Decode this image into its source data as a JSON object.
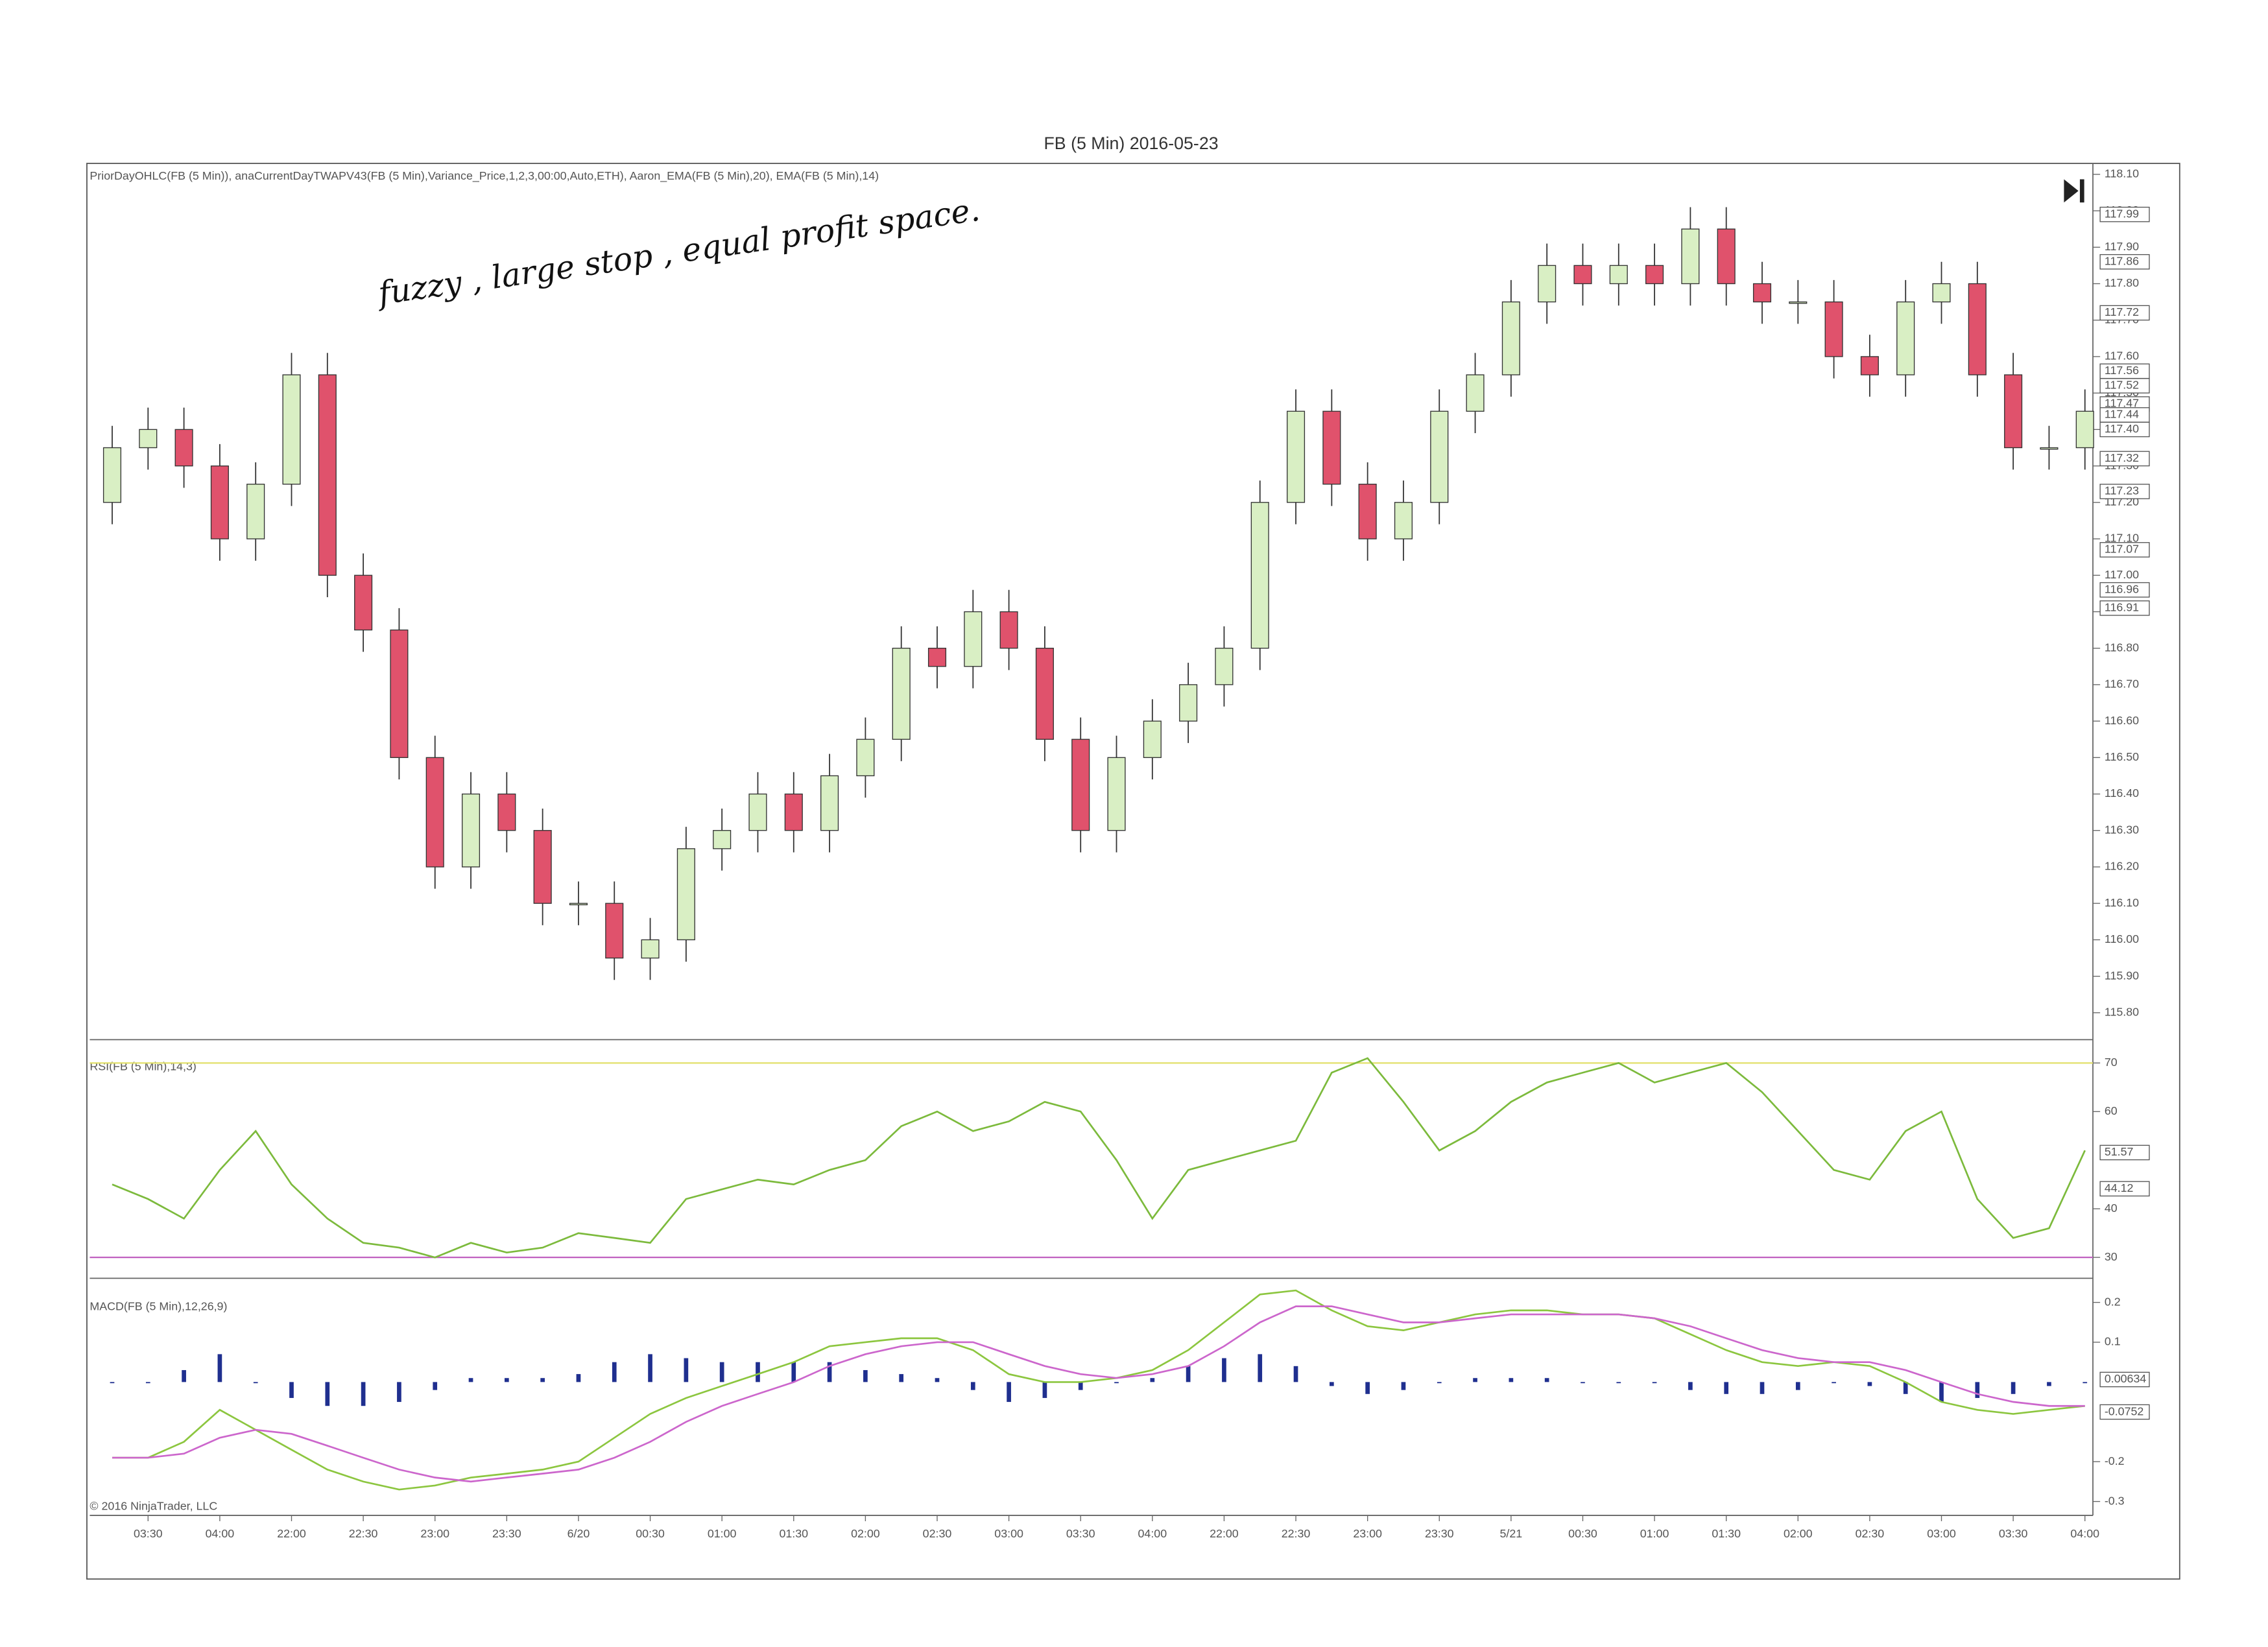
{
  "chart_data": [
    {
      "type": "candlestick",
      "page_title": "FB (5 Min)  2016-05-23",
      "title": "PriorDayOHLC(FB (5 Min)), anaCurrentDayTWAPV43(FB (5 Min),Variance_Price,1,2,3,00:00,Auto,ETH), Aaron_EMA(FB (5 Min),20), EMA(FB (5 Min),14)",
      "annotation": "fuzzy , large stop , equal profit space.",
      "copyright": "© 2016 NinjaTrader, LLC",
      "up_color": "#d9efc4",
      "down_color": "#e0526c",
      "categories": [
        null,
        "03:30",
        null,
        "04:00",
        null,
        "22:00",
        null,
        "22:30",
        null,
        "23:00",
        null,
        "23:30",
        null,
        "6/20",
        null,
        "00:30",
        null,
        "01:00",
        null,
        "01:30",
        null,
        "02:00",
        null,
        "02:30",
        null,
        "03:00",
        null,
        "03:30",
        null,
        "04:00",
        null,
        "22:00",
        null,
        "22:30",
        null,
        "23:00",
        null,
        "23:30",
        null,
        "5/21",
        null,
        "00:30",
        null,
        "01:00",
        null,
        "01:30",
        null,
        "02:00",
        null,
        "02:30",
        null,
        "03:00",
        null,
        "03:30",
        null,
        "04:00"
      ],
      "open": [
        117.2,
        117.35,
        117.4,
        117.3,
        117.1,
        117.25,
        117.55,
        117.0,
        116.85,
        116.5,
        116.2,
        116.4,
        116.3,
        116.1,
        116.1,
        115.95,
        116.0,
        116.25,
        116.3,
        116.4,
        116.3,
        116.45,
        116.55,
        116.8,
        116.75,
        116.9,
        116.8,
        116.55,
        116.3,
        116.5,
        116.6,
        116.7,
        116.8,
        117.2,
        117.45,
        117.25,
        117.1,
        117.2,
        117.45,
        117.55,
        117.75,
        117.85,
        117.8,
        117.85,
        117.8,
        117.95,
        117.8,
        117.75,
        117.75,
        117.6,
        117.55,
        117.75,
        117.8,
        117.55,
        117.35,
        117.35
      ],
      "high": [
        117.41,
        117.46,
        117.46,
        117.36,
        117.31,
        117.61,
        117.61,
        117.06,
        116.91,
        116.56,
        116.46,
        116.46,
        116.36,
        116.16,
        116.16,
        116.06,
        116.31,
        116.36,
        116.46,
        116.46,
        116.51,
        116.61,
        116.86,
        116.86,
        116.96,
        116.96,
        116.86,
        116.61,
        116.56,
        116.66,
        116.76,
        116.86,
        117.26,
        117.51,
        117.51,
        117.31,
        117.26,
        117.51,
        117.61,
        117.81,
        117.91,
        117.91,
        117.91,
        117.91,
        118.01,
        118.01,
        117.86,
        117.81,
        117.81,
        117.66,
        117.81,
        117.86,
        117.86,
        117.61,
        117.41,
        117.51
      ],
      "low": [
        117.14,
        117.29,
        117.24,
        117.04,
        117.04,
        117.19,
        116.94,
        116.79,
        116.44,
        116.14,
        116.14,
        116.24,
        116.04,
        116.04,
        115.89,
        115.89,
        115.94,
        116.19,
        116.24,
        116.24,
        116.24,
        116.39,
        116.49,
        116.69,
        116.69,
        116.74,
        116.49,
        116.24,
        116.24,
        116.44,
        116.54,
        116.64,
        116.74,
        117.14,
        117.19,
        117.04,
        117.04,
        117.14,
        117.39,
        117.49,
        117.69,
        117.74,
        117.74,
        117.74,
        117.74,
        117.74,
        117.69,
        117.69,
        117.54,
        117.49,
        117.49,
        117.69,
        117.49,
        117.29,
        117.29,
        117.29
      ],
      "close": [
        117.35,
        117.4,
        117.3,
        117.1,
        117.25,
        117.55,
        117.0,
        116.85,
        116.5,
        116.2,
        116.4,
        116.3,
        116.1,
        116.1,
        115.95,
        116.0,
        116.25,
        116.3,
        116.4,
        116.3,
        116.45,
        116.55,
        116.8,
        116.75,
        116.9,
        116.8,
        116.55,
        116.3,
        116.5,
        116.6,
        116.7,
        116.8,
        117.2,
        117.45,
        117.25,
        117.1,
        117.2,
        117.45,
        117.55,
        117.75,
        117.85,
        117.8,
        117.85,
        117.8,
        117.95,
        117.8,
        117.75,
        117.75,
        117.6,
        117.55,
        117.75,
        117.8,
        117.55,
        117.35,
        117.35,
        117.45
      ],
      "ylim": [
        115.73,
        118.13
      ],
      "yticks": [
        {
          "value": 115.8,
          "label": "115.80"
        },
        {
          "value": 115.9,
          "label": "115.90"
        },
        {
          "value": 116.0,
          "label": "116.00"
        },
        {
          "value": 116.1,
          "label": "116.10"
        },
        {
          "value": 116.2,
          "label": "116.20"
        },
        {
          "value": 116.3,
          "label": "116.30"
        },
        {
          "value": 116.4,
          "label": "116.40"
        },
        {
          "value": 116.5,
          "label": "116.50"
        },
        {
          "value": 116.6,
          "label": "116.60"
        },
        {
          "value": 116.7,
          "label": "116.70"
        },
        {
          "value": 116.8,
          "label": "116.80"
        },
        {
          "value": 116.9,
          "label": "116.90"
        },
        {
          "value": 117.0,
          "label": "117.00"
        },
        {
          "value": 117.1,
          "label": "117.10"
        },
        {
          "value": 117.2,
          "label": "117.20"
        },
        {
          "value": 117.3,
          "label": "117.30"
        },
        {
          "value": 117.4,
          "label": "117.40"
        },
        {
          "value": 117.5,
          "label": "117.50"
        },
        {
          "value": 117.6,
          "label": "117.60"
        },
        {
          "value": 117.7,
          "label": "117.70"
        },
        {
          "value": 117.8,
          "label": "117.80"
        },
        {
          "value": 117.9,
          "label": "117.90"
        },
        {
          "value": 118.0,
          "label": "118.00"
        },
        {
          "value": 118.1,
          "label": "118.10"
        }
      ],
      "markers": [
        117.99,
        117.86,
        117.72,
        117.56,
        117.52,
        117.47,
        117.44,
        {
          "value": 117.4,
          "label": "117.40"
        },
        117.32,
        117.23,
        117.07,
        116.96,
        116.91
      ]
    },
    {
      "type": "line",
      "title": "RSI(FB (5 Min),14,3)",
      "series": [
        {
          "color": "#7cba3c",
          "values": [
            45,
            42,
            38,
            48,
            56,
            45,
            38,
            33,
            32,
            30,
            33,
            31,
            32,
            35,
            34,
            33,
            42,
            44,
            46,
            45,
            48,
            50,
            57,
            60,
            56,
            58,
            62,
            60,
            50,
            38,
            48,
            50,
            52,
            54,
            68,
            71,
            62,
            52,
            56,
            62,
            66,
            68,
            70,
            66,
            68,
            70,
            64,
            56,
            48,
            46,
            56,
            60,
            42,
            34,
            36,
            52
          ]
        }
      ],
      "ylim": [
        26,
        74.5
      ],
      "yticks": [
        30,
        40,
        60,
        70
      ],
      "levels": [
        {
          "value": 70,
          "color": "#e2e06a"
        },
        {
          "value": 30,
          "color": "#c060c0"
        }
      ],
      "markers": [
        51.57,
        44.12
      ]
    },
    {
      "type": "combo",
      "title": "MACD(FB (5 Min),12,26,9)",
      "series": [
        {
          "type": "bar",
          "color": "#1f2f8f",
          "values": [
            0,
            0,
            0.03,
            0.07,
            0,
            -0.04,
            -0.06,
            -0.06,
            -0.05,
            -0.02,
            0.01,
            0.01,
            0.01,
            0.02,
            0.05,
            0.07,
            0.06,
            0.05,
            0.05,
            0.05,
            0.05,
            0.03,
            0.02,
            0.01,
            -0.02,
            -0.05,
            -0.04,
            -0.02,
            0,
            0.01,
            0.04,
            0.06,
            0.07,
            0.04,
            -0.01,
            -0.03,
            -0.02,
            0,
            0.01,
            0.01,
            0.01,
            0,
            0,
            0,
            -0.02,
            -0.03,
            -0.03,
            -0.02,
            0,
            -0.01,
            -0.03,
            -0.05,
            -0.04,
            -0.03,
            -0.01,
            0
          ]
        },
        {
          "type": "line",
          "color": "#8cc63f",
          "values": [
            -0.19,
            -0.19,
            -0.15,
            -0.07,
            -0.12,
            -0.17,
            -0.22,
            -0.25,
            -0.27,
            -0.26,
            -0.24,
            -0.23,
            -0.22,
            -0.2,
            -0.14,
            -0.08,
            -0.04,
            -0.01,
            0.02,
            0.05,
            0.09,
            0.1,
            0.11,
            0.11,
            0.08,
            0.02,
            0,
            0,
            0.01,
            0.03,
            0.08,
            0.15,
            0.22,
            0.23,
            0.18,
            0.14,
            0.13,
            0.15,
            0.17,
            0.18,
            0.18,
            0.17,
            0.17,
            0.16,
            0.12,
            0.08,
            0.05,
            0.04,
            0.05,
            0.04,
            0,
            -0.05,
            -0.07,
            -0.08,
            -0.07,
            -0.06
          ]
        },
        {
          "type": "line",
          "color": "#cc66cc",
          "values": [
            -0.19,
            -0.19,
            -0.18,
            -0.14,
            -0.12,
            -0.13,
            -0.16,
            -0.19,
            -0.22,
            -0.24,
            -0.25,
            -0.24,
            -0.23,
            -0.22,
            -0.19,
            -0.15,
            -0.1,
            -0.06,
            -0.03,
            0,
            0.04,
            0.07,
            0.09,
            0.1,
            0.1,
            0.07,
            0.04,
            0.02,
            0.01,
            0.02,
            0.04,
            0.09,
            0.15,
            0.19,
            0.19,
            0.17,
            0.15,
            0.15,
            0.16,
            0.17,
            0.17,
            0.17,
            0.17,
            0.16,
            0.14,
            0.11,
            0.08,
            0.06,
            0.05,
            0.05,
            0.03,
            0,
            -0.03,
            -0.05,
            -0.06,
            -0.06
          ]
        }
      ],
      "ylim": [
        -0.335,
        0.257
      ],
      "yticks": [
        0.2,
        0.1,
        -0.2,
        -0.3
      ],
      "markers": [
        0.00634,
        -0.0752
      ]
    }
  ]
}
